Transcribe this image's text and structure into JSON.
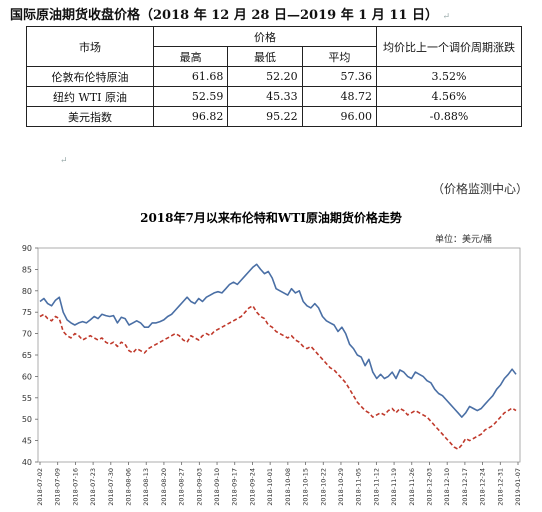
{
  "table": {
    "title": "国际原油期货收盘价格（2018 年 12 月 28 日—2019 年 1 月 11 日）",
    "header_market": "市场",
    "header_price": "价格",
    "header_high": "最高",
    "header_low": "最低",
    "header_avg": "平均",
    "header_change": "均价比上一个调价周期涨跌",
    "rows": [
      {
        "market": "伦敦布伦特原油",
        "high": "61.68",
        "low": "52.20",
        "avg": "57.36",
        "change": "3.52%"
      },
      {
        "market": "纽约 WTI 原油",
        "high": "52.59",
        "low": "45.33",
        "avg": "48.72",
        "change": "4.56%"
      },
      {
        "market": "美元指数",
        "high": "96.82",
        "low": "95.22",
        "avg": "96.00",
        "change": "-0.88%"
      }
    ]
  },
  "source": "（价格监测中心）",
  "chart_data": {
    "type": "line",
    "title": "2018年7月以来布伦特和WTI原油期货价格走势",
    "unit_label": "单位：美元/桶",
    "ylim": [
      40,
      90
    ],
    "yticks": [
      40,
      45,
      50,
      55,
      60,
      65,
      70,
      75,
      80,
      85,
      90
    ],
    "grid": false,
    "x_tick_labels": [
      "2018-07-02",
      "2018-07-09",
      "2018-07-16",
      "2018-07-23",
      "2018-07-30",
      "2018-08-06",
      "2018-08-13",
      "2018-08-20",
      "2018-08-27",
      "2018-09-03",
      "2018-09-10",
      "2018-09-17",
      "2018-09-24",
      "2018-10-01",
      "2018-10-08",
      "2018-10-15",
      "2018-10-22",
      "2018-10-29",
      "2018-11-05",
      "2018-11-12",
      "2018-11-19",
      "2018-11-26",
      "2018-12-03",
      "2018-12-10",
      "2018-12-17",
      "2018-12-24",
      "2018-12-31",
      "2019-01-07"
    ],
    "series": [
      {
        "style": "solid",
        "color": "#4a6fa5",
        "values": [
          77.5,
          78.2,
          77.0,
          76.5,
          77.8,
          78.5,
          75.0,
          73.2,
          72.5,
          72.0,
          72.5,
          72.8,
          72.5,
          73.2,
          74.0,
          73.5,
          74.5,
          74.2,
          74.0,
          74.2,
          72.5,
          73.8,
          73.5,
          72.0,
          72.5,
          73.0,
          72.5,
          71.5,
          71.5,
          72.5,
          72.5,
          72.8,
          73.2,
          74.0,
          74.5,
          75.5,
          76.5,
          77.5,
          78.5,
          77.5,
          77.0,
          78.2,
          77.5,
          78.5,
          79.0,
          79.5,
          79.8,
          79.5,
          80.5,
          81.5,
          82.0,
          81.5,
          82.5,
          83.5,
          84.5,
          85.5,
          86.2,
          85.0,
          84.0,
          84.5,
          83.0,
          80.5,
          80.0,
          79.5,
          79.0,
          80.5,
          79.5,
          80.0,
          77.5,
          76.5,
          76.0,
          77.0,
          76.0,
          74.0,
          73.0,
          72.5,
          72.0,
          70.5,
          71.5,
          70.0,
          67.5,
          66.5,
          65.0,
          64.5,
          62.5,
          64.0,
          61.0,
          59.5,
          60.5,
          59.5,
          60.0,
          61.0,
          59.5,
          61.5,
          61.0,
          60.0,
          59.5,
          61.0,
          60.5,
          60.0,
          59.0,
          58.5,
          57.0,
          56.0,
          55.5,
          54.5,
          53.5,
          52.5,
          51.5,
          50.5,
          51.5,
          53.0,
          52.5,
          52.0,
          52.5,
          53.5,
          54.5,
          55.5,
          57.0,
          58.0,
          59.5,
          60.5,
          61.68,
          60.5
        ]
      },
      {
        "style": "dashed",
        "color": "#c0392b",
        "values": [
          74.0,
          74.5,
          73.5,
          73.0,
          74.0,
          73.5,
          70.5,
          69.5,
          69.0,
          70.0,
          69.5,
          68.5,
          69.0,
          69.5,
          69.0,
          68.5,
          69.0,
          68.0,
          67.5,
          68.0,
          67.0,
          68.0,
          67.5,
          66.0,
          65.5,
          66.5,
          66.0,
          65.5,
          66.5,
          67.0,
          67.5,
          68.0,
          68.5,
          69.0,
          69.5,
          70.0,
          69.5,
          68.5,
          68.0,
          69.5,
          69.0,
          68.5,
          69.5,
          70.0,
          69.5,
          70.5,
          71.0,
          71.5,
          72.0,
          72.5,
          73.0,
          73.5,
          74.0,
          75.0,
          76.0,
          76.5,
          75.0,
          74.0,
          73.5,
          72.0,
          71.5,
          70.5,
          70.0,
          69.5,
          69.0,
          69.5,
          68.5,
          68.0,
          67.0,
          66.5,
          67.0,
          66.0,
          65.0,
          64.0,
          63.0,
          62.0,
          61.5,
          60.5,
          59.5,
          58.5,
          57.0,
          55.5,
          54.0,
          53.0,
          52.0,
          51.5,
          50.5,
          51.0,
          51.5,
          51.0,
          52.0,
          52.5,
          51.5,
          52.5,
          52.0,
          51.0,
          51.5,
          52.0,
          51.5,
          51.0,
          50.5,
          49.5,
          48.5,
          47.5,
          46.5,
          45.5,
          44.5,
          43.5,
          43.0,
          44.0,
          45.5,
          45.0,
          45.5,
          46.0,
          46.5,
          47.5,
          48.0,
          48.5,
          49.5,
          50.5,
          51.5,
          52.0,
          52.59,
          52.0
        ]
      }
    ]
  }
}
